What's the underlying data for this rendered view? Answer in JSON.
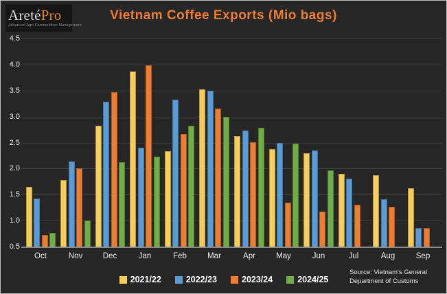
{
  "logo": {
    "brand_primary": "Areté",
    "brand_accent": "Pro",
    "tagline": "Advanced Agri-Commodities Management"
  },
  "header": {
    "title": "Vietnam Coffee Exports (Mio bags)"
  },
  "source": {
    "line1": "Source: Vietnam's General",
    "line2": "Department of Customs"
  },
  "colors": {
    "background": "#262626",
    "title": "#ed7d31",
    "gridline": "#3d3d3d",
    "axis_line": "#8c8c8c",
    "tick_text": "#ececec",
    "series_2021_22": "#f7ce5b",
    "series_2022_23": "#5b9bd5",
    "series_2023_24": "#ed7d31",
    "series_2024_25": "#70ad47"
  },
  "chart_data": {
    "type": "bar",
    "title": "Vietnam Coffee Exports (Mio bags)",
    "xlabel": "",
    "ylabel": "Mio bags",
    "ylim": [
      0.5,
      4.5
    ],
    "ytick_step": 0.5,
    "grid": true,
    "legend_position": "bottom",
    "categories": [
      "Oct",
      "Nov",
      "Dec",
      "Jan",
      "Feb",
      "Mar",
      "Apr",
      "May",
      "Jun",
      "Jul",
      "Aug",
      "Sep"
    ],
    "series": [
      {
        "name": "2021/22",
        "color": "#f7ce5b",
        "values": [
          1.65,
          1.78,
          2.83,
          3.86,
          2.33,
          3.52,
          2.62,
          2.38,
          2.3,
          1.9,
          1.87,
          1.62
        ]
      },
      {
        "name": "2022/23",
        "color": "#5b9bd5",
        "values": [
          1.42,
          2.14,
          3.28,
          2.4,
          3.33,
          3.5,
          2.73,
          2.49,
          2.35,
          1.81,
          1.41,
          0.85
        ]
      },
      {
        "name": "2023/24",
        "color": "#ed7d31",
        "values": [
          0.73,
          2.0,
          3.47,
          3.98,
          2.67,
          3.15,
          2.51,
          1.34,
          1.17,
          1.3,
          1.27,
          0.86
        ]
      },
      {
        "name": "2024/25",
        "color": "#70ad47",
        "values": [
          0.77,
          1.0,
          2.12,
          2.23,
          2.83,
          3.0,
          2.79,
          2.48,
          1.97,
          null,
          null,
          null
        ]
      }
    ]
  }
}
